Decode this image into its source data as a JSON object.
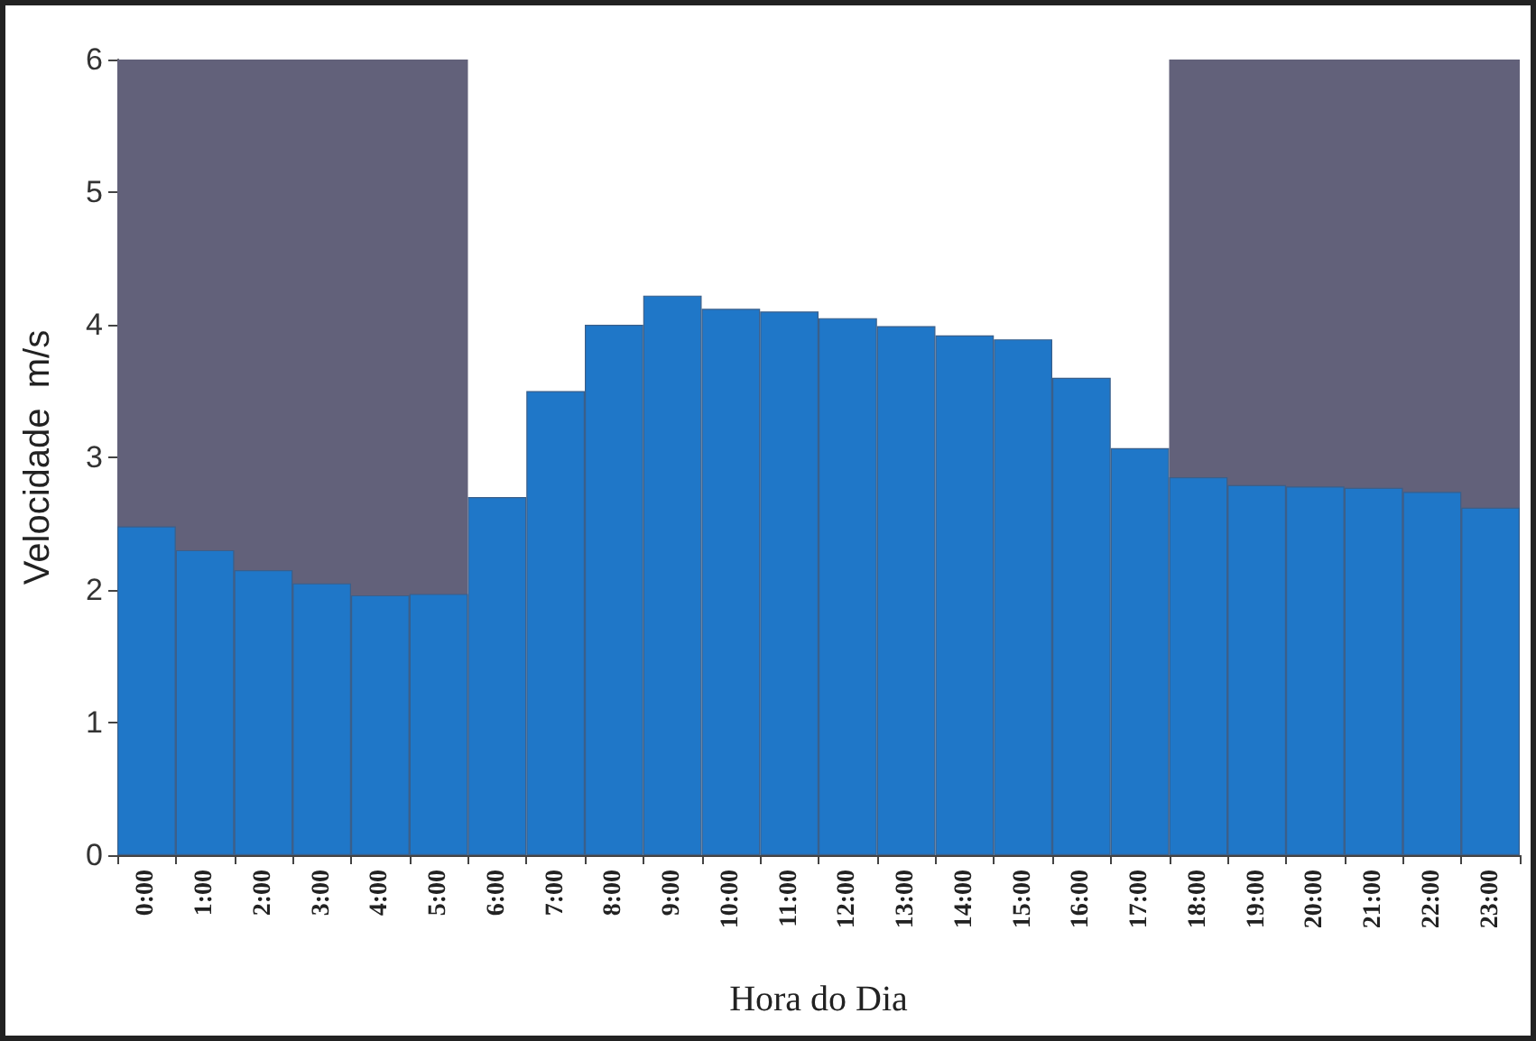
{
  "chart_data": {
    "type": "bar",
    "xlabel": "Hora do Dia",
    "ylabel": "Velocidade  m/s",
    "categories": [
      "0:00",
      "1:00",
      "2:00",
      "3:00",
      "4:00",
      "5:00",
      "6:00",
      "7:00",
      "8:00",
      "9:00",
      "10:00",
      "11:00",
      "12:00",
      "13:00",
      "14:00",
      "15:00",
      "16:00",
      "17:00",
      "18:00",
      "19:00",
      "20:00",
      "21:00",
      "22:00",
      "23:00"
    ],
    "values": [
      2.48,
      2.3,
      2.15,
      2.05,
      1.96,
      1.97,
      2.7,
      3.5,
      4.0,
      4.22,
      4.12,
      4.1,
      4.05,
      3.99,
      3.92,
      3.89,
      3.6,
      3.07,
      2.85,
      2.79,
      2.78,
      2.77,
      2.74,
      2.62
    ],
    "color": "#1f77c8",
    "ylim": [
      0,
      6
    ],
    "yticks": [
      0,
      1,
      2,
      3,
      4,
      5,
      6
    ],
    "grid": false,
    "bands": [
      {
        "axis": "x",
        "from": "0:00",
        "to": "5:00",
        "color": "#62617a"
      },
      {
        "axis": "x",
        "from": "18:00",
        "to": "23:00",
        "color": "#62617a"
      }
    ]
  }
}
